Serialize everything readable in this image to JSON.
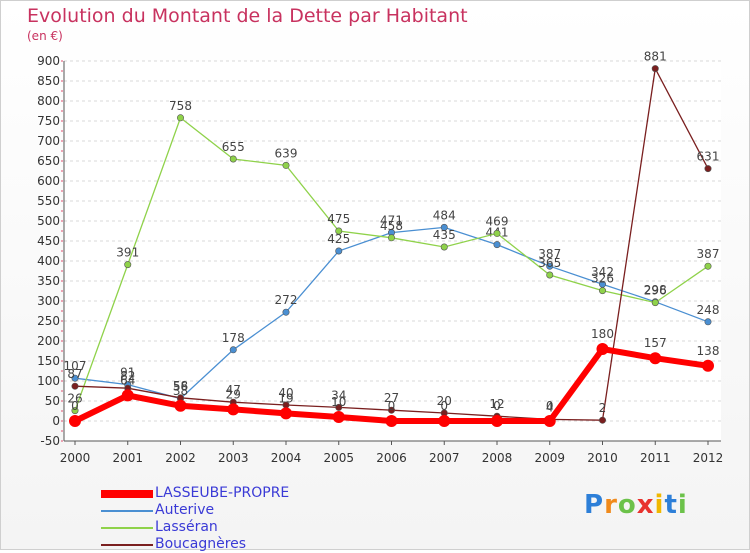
{
  "chart_data": {
    "type": "line",
    "title": "Evolution du Montant de la Dette par Habitant",
    "subtitle": "(en €)",
    "x": [
      "2000",
      "2001",
      "2002",
      "2003",
      "2004",
      "2005",
      "2006",
      "2007",
      "2008",
      "2009",
      "2010",
      "2011",
      "2012"
    ],
    "ylim": [
      -50,
      900
    ],
    "yticks": [
      -50,
      0,
      50,
      100,
      150,
      200,
      250,
      300,
      350,
      400,
      450,
      500,
      550,
      600,
      650,
      700,
      750,
      800,
      850,
      900
    ],
    "grid": "horizontal",
    "legend_position": "bottom-left",
    "series": [
      {
        "name": "LASSEUBE-PROPRE",
        "color": "#ff0000",
        "values": [
          0,
          64,
          38,
          29,
          19,
          10,
          0,
          0,
          0,
          0,
          180,
          157,
          138
        ],
        "labels": [
          "0",
          "64",
          "38",
          "29",
          "19",
          "10",
          "0",
          "0",
          "0",
          "0",
          "180",
          "157",
          "138"
        ]
      },
      {
        "name": "Auterive",
        "color": "#4a8fd2",
        "values": [
          107,
          91,
          56,
          178,
          272,
          425,
          471,
          484,
          441,
          387,
          342,
          298,
          248
        ],
        "labels": [
          "107",
          "91",
          "56",
          "178",
          "272",
          "425",
          "471",
          "484",
          "441",
          "387",
          "342",
          "298",
          "248"
        ]
      },
      {
        "name": "Lasséran",
        "color": "#8fd24a",
        "values": [
          26,
          391,
          758,
          655,
          639,
          475,
          458,
          435,
          469,
          365,
          326,
          296,
          387
        ],
        "labels": [
          "26",
          "391",
          "758",
          "655",
          "639",
          "475",
          "458",
          "435",
          "469",
          "365",
          "326",
          "296",
          "387"
        ]
      },
      {
        "name": "Boucagnères",
        "color": "#7a1f1f",
        "values": [
          87,
          82,
          58,
          47,
          40,
          34,
          27,
          20,
          12,
          4,
          2,
          881,
          631
        ],
        "labels": [
          "87",
          "82",
          "58",
          "47",
          "40",
          "34",
          "27",
          "20",
          "12",
          "4",
          "2",
          "881",
          "631"
        ]
      }
    ]
  },
  "logo": {
    "text": "Proxiti",
    "colors": [
      "#2d7fd8",
      "#f08a1c",
      "#6cc24a",
      "#e8322e",
      "#f0b800",
      "#2d7fd8",
      "#6cc24a"
    ]
  }
}
